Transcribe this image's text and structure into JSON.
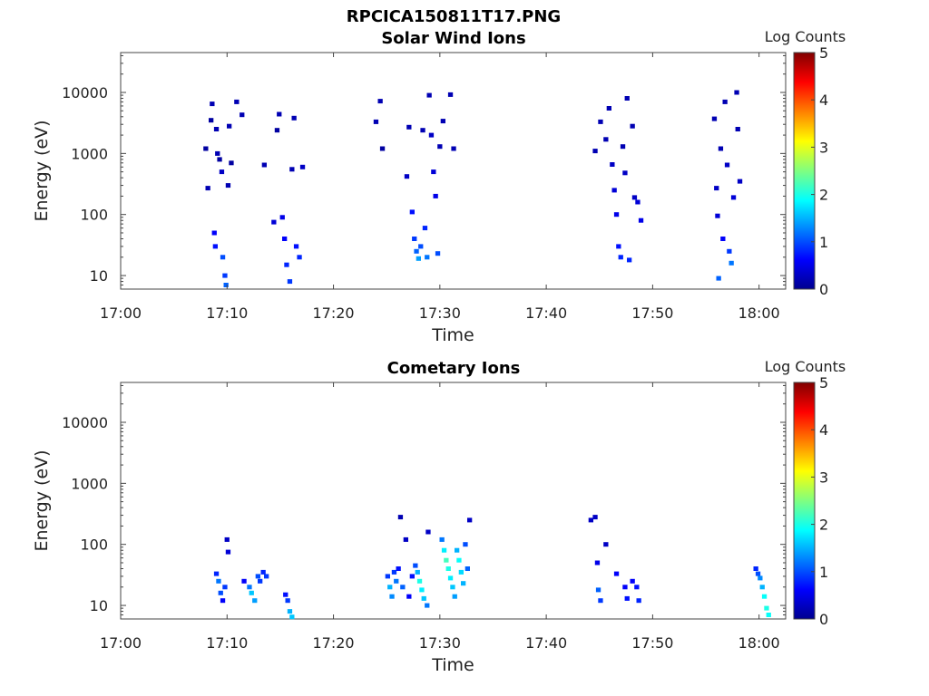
{
  "figure_title": "RPCICA150811T17.PNG",
  "colormap": [
    "#00008f",
    "#0000ff",
    "#0080ff",
    "#00ffff",
    "#80ff80",
    "#ffff00",
    "#ff8000",
    "#ff0000",
    "#800000"
  ],
  "chart_data": [
    {
      "type": "heatmap",
      "title": "Solar Wind Ions",
      "xlabel": "Time",
      "ylabel": "Energy (eV)",
      "colorbar_label": "Log Counts",
      "x_range_minutes": [
        0,
        62.5
      ],
      "x_ticks": [
        "17:00",
        "17:10",
        "17:20",
        "17:30",
        "17:40",
        "17:50",
        "18:00"
      ],
      "ylim": [
        6,
        45000
      ],
      "y_scale": "log",
      "y_ticks": [
        "10",
        "100",
        "1000",
        "10000"
      ],
      "clim": [
        0,
        5
      ],
      "colorbar_ticks": [
        "0",
        "1",
        "2",
        "3",
        "4",
        "5"
      ],
      "cells": [
        [
          8.0,
          1200,
          0.1
        ],
        [
          8.2,
          270,
          0.2
        ],
        [
          8.5,
          3500,
          0.1
        ],
        [
          8.6,
          6500,
          0.2
        ],
        [
          8.8,
          50,
          0.6
        ],
        [
          8.9,
          30,
          0.7
        ],
        [
          9.0,
          2500,
          0.2
        ],
        [
          9.1,
          1000,
          0.2
        ],
        [
          9.3,
          800,
          0.1
        ],
        [
          9.5,
          500,
          0.3
        ],
        [
          9.6,
          20,
          1.0
        ],
        [
          9.8,
          10,
          0.9
        ],
        [
          9.9,
          7,
          1.1
        ],
        [
          10.1,
          300,
          0.2
        ],
        [
          10.2,
          2800,
          0.2
        ],
        [
          10.4,
          700,
          0.1
        ],
        [
          10.9,
          7000,
          0.2
        ],
        [
          11.4,
          4300,
          0.2
        ],
        [
          13.5,
          650,
          0.2
        ],
        [
          14.4,
          75,
          0.4
        ],
        [
          14.7,
          2400,
          0.1
        ],
        [
          14.9,
          4400,
          0.2
        ],
        [
          15.2,
          90,
          0.5
        ],
        [
          15.4,
          40,
          0.6
        ],
        [
          15.6,
          15,
          0.8
        ],
        [
          15.9,
          8,
          0.9
        ],
        [
          16.1,
          550,
          0.2
        ],
        [
          16.3,
          3800,
          0.2
        ],
        [
          16.5,
          30,
          0.7
        ],
        [
          16.8,
          20,
          0.8
        ],
        [
          17.1,
          600,
          0.3
        ],
        [
          24.0,
          3300,
          0.2
        ],
        [
          24.4,
          7200,
          0.2
        ],
        [
          24.6,
          1200,
          0.1
        ],
        [
          26.9,
          420,
          0.3
        ],
        [
          27.1,
          2700,
          0.2
        ],
        [
          27.4,
          110,
          0.7
        ],
        [
          27.6,
          40,
          0.9
        ],
        [
          27.8,
          25,
          1.1
        ],
        [
          28.0,
          19,
          1.4
        ],
        [
          28.2,
          30,
          1.0
        ],
        [
          28.4,
          2400,
          0.2
        ],
        [
          28.6,
          60,
          0.8
        ],
        [
          28.8,
          20,
          1.2
        ],
        [
          29.0,
          9000,
          0.2
        ],
        [
          29.2,
          2000,
          0.3
        ],
        [
          29.4,
          500,
          0.4
        ],
        [
          29.6,
          200,
          0.5
        ],
        [
          29.8,
          23,
          1.0
        ],
        [
          30.0,
          1300,
          0.2
        ],
        [
          30.3,
          3400,
          0.2
        ],
        [
          31.0,
          9200,
          0.2
        ],
        [
          31.3,
          1200,
          0.2
        ],
        [
          44.6,
          1100,
          0.2
        ],
        [
          45.1,
          3300,
          0.2
        ],
        [
          45.6,
          1700,
          0.2
        ],
        [
          45.9,
          5500,
          0.2
        ],
        [
          46.2,
          660,
          0.3
        ],
        [
          46.4,
          250,
          0.4
        ],
        [
          46.6,
          100,
          0.5
        ],
        [
          46.8,
          30,
          0.7
        ],
        [
          47.0,
          20,
          0.8
        ],
        [
          47.2,
          1300,
          0.2
        ],
        [
          47.4,
          480,
          0.3
        ],
        [
          47.6,
          8000,
          0.2
        ],
        [
          47.8,
          18,
          0.8
        ],
        [
          48.1,
          2800,
          0.2
        ],
        [
          48.3,
          190,
          0.3
        ],
        [
          48.6,
          160,
          0.4
        ],
        [
          48.9,
          80,
          0.5
        ],
        [
          55.8,
          3700,
          0.2
        ],
        [
          56.0,
          270,
          0.3
        ],
        [
          56.1,
          95,
          0.4
        ],
        [
          56.2,
          9,
          1.1
        ],
        [
          56.4,
          1200,
          0.2
        ],
        [
          56.6,
          40,
          0.6
        ],
        [
          56.8,
          7000,
          0.2
        ],
        [
          57.0,
          650,
          0.3
        ],
        [
          57.2,
          25,
          0.9
        ],
        [
          57.4,
          16,
          1.2
        ],
        [
          57.6,
          190,
          0.4
        ],
        [
          57.9,
          10000,
          0.2
        ],
        [
          58.0,
          2500,
          0.2
        ],
        [
          58.2,
          350,
          0.3
        ]
      ]
    },
    {
      "type": "heatmap",
      "title": "Cometary Ions",
      "xlabel": "Time",
      "ylabel": "Energy (eV)",
      "colorbar_label": "Log Counts",
      "x_range_minutes": [
        0,
        62.5
      ],
      "x_ticks": [
        "17:00",
        "17:10",
        "17:20",
        "17:30",
        "17:40",
        "17:50",
        "18:00"
      ],
      "ylim": [
        6,
        45000
      ],
      "y_scale": "log",
      "y_ticks": [
        "10",
        "100",
        "1000",
        "10000"
      ],
      "clim": [
        0,
        5
      ],
      "colorbar_ticks": [
        "0",
        "1",
        "2",
        "3",
        "4",
        "5"
      ],
      "cells": [
        [
          9.0,
          33,
          0.8
        ],
        [
          9.2,
          25,
          1.2
        ],
        [
          9.4,
          16,
          1.0
        ],
        [
          9.6,
          12,
          0.6
        ],
        [
          9.8,
          20,
          0.9
        ],
        [
          10.0,
          120,
          0.3
        ],
        [
          10.1,
          75,
          0.4
        ],
        [
          11.6,
          25,
          0.6
        ],
        [
          12.1,
          20,
          1.2
        ],
        [
          12.3,
          16,
          1.6
        ],
        [
          12.6,
          12,
          1.4
        ],
        [
          12.9,
          30,
          1.0
        ],
        [
          13.1,
          25,
          0.9
        ],
        [
          13.4,
          35,
          0.8
        ],
        [
          13.7,
          30,
          0.9
        ],
        [
          15.5,
          15,
          0.7
        ],
        [
          15.7,
          12,
          0.9
        ],
        [
          15.9,
          8,
          1.5
        ],
        [
          16.1,
          6.5,
          1.6
        ],
        [
          25.1,
          30,
          0.9
        ],
        [
          25.3,
          20,
          1.5
        ],
        [
          25.5,
          14,
          1.3
        ],
        [
          25.7,
          35,
          0.9
        ],
        [
          25.9,
          25,
          1.2
        ],
        [
          26.1,
          40,
          0.7
        ],
        [
          26.3,
          280,
          0.2
        ],
        [
          26.5,
          20,
          1.1
        ],
        [
          26.8,
          120,
          0.3
        ],
        [
          27.1,
          14,
          0.6
        ],
        [
          27.4,
          30,
          0.7
        ],
        [
          27.7,
          45,
          1.0
        ],
        [
          27.9,
          35,
          1.5
        ],
        [
          28.1,
          25,
          2.0
        ],
        [
          28.3,
          18,
          1.8
        ],
        [
          28.5,
          13,
          1.6
        ],
        [
          28.8,
          10,
          1.2
        ],
        [
          28.9,
          160,
          0.3
        ],
        [
          30.2,
          120,
          1.2
        ],
        [
          30.4,
          80,
          1.8
        ],
        [
          30.6,
          55,
          2.2
        ],
        [
          30.8,
          40,
          2.0
        ],
        [
          31.0,
          28,
          1.8
        ],
        [
          31.2,
          20,
          1.6
        ],
        [
          31.4,
          14,
          1.4
        ],
        [
          31.6,
          80,
          1.5
        ],
        [
          31.8,
          55,
          1.9
        ],
        [
          32.0,
          35,
          1.7
        ],
        [
          32.2,
          23,
          1.5
        ],
        [
          32.4,
          100,
          1.0
        ],
        [
          32.6,
          40,
          1.1
        ],
        [
          32.8,
          250,
          0.3
        ],
        [
          44.2,
          250,
          0.3
        ],
        [
          44.6,
          280,
          0.3
        ],
        [
          44.8,
          50,
          0.5
        ],
        [
          44.9,
          18,
          1.1
        ],
        [
          45.1,
          12,
          0.9
        ],
        [
          45.6,
          100,
          0.3
        ],
        [
          46.6,
          33,
          0.6
        ],
        [
          47.4,
          20,
          0.6
        ],
        [
          47.6,
          13,
          0.7
        ],
        [
          48.1,
          25,
          0.6
        ],
        [
          48.5,
          20,
          0.7
        ],
        [
          48.7,
          12,
          0.8
        ],
        [
          59.7,
          40,
          0.8
        ],
        [
          59.9,
          33,
          1.0
        ],
        [
          60.1,
          28,
          1.3
        ],
        [
          60.3,
          20,
          1.5
        ],
        [
          60.5,
          14,
          1.9
        ],
        [
          60.7,
          9,
          2.0
        ],
        [
          60.9,
          7,
          1.9
        ]
      ]
    }
  ]
}
